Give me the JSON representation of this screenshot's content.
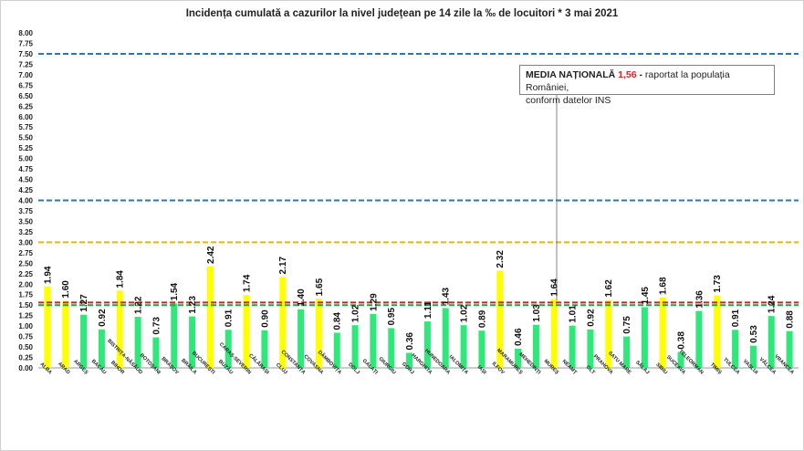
{
  "chart_data": {
    "type": "bar",
    "title": "Incidența cumulată a cazurilor la nivel județean pe 14 zile la ‰ de locuitori *   3 mai 2021",
    "ylim": [
      0,
      8
    ],
    "yticks": [
      "0.00",
      "0.25",
      "0.50",
      "0.75",
      "1.00",
      "1.25",
      "1.50",
      "1.75",
      "2.00",
      "2.25",
      "2.50",
      "2.75",
      "3.00",
      "3.25",
      "3.50",
      "3.75",
      "4.00",
      "4.25",
      "4.50",
      "4.75",
      "5.00",
      "5.25",
      "5.50",
      "5.75",
      "6.00",
      "6.25",
      "6.50",
      "6.75",
      "7.00",
      "7.25",
      "7.50",
      "7.75",
      "8.00"
    ],
    "categories": [
      "ALBA",
      "ARAD",
      "ARGEȘ",
      "BACĂU",
      "BIHOR",
      "BISTRIȚA-NĂSĂUD",
      "BOTOȘANI",
      "BRAȘOV",
      "BRĂILA",
      "BUCUREȘTI",
      "BUZĂU",
      "CARAȘ-SEVERIN",
      "CĂLĂRAȘI",
      "CLUJ",
      "CONSTANȚA",
      "COVASNA",
      "DÂMBOVIȚA",
      "DOLJ",
      "GALAȚI",
      "GIURGIU",
      "GORJ",
      "HARGHITA",
      "HUNEDOARA",
      "IALOMIȚA",
      "IAȘI",
      "ILFOV",
      "MARAMUREȘ",
      "MEHEDINȚI",
      "MUREȘ",
      "NEAMȚ",
      "OLT",
      "PRAHOVA",
      "SATU MARE",
      "SĂLAJ",
      "SIBIU",
      "SUCEAVA",
      "TELEORMAN",
      "TIMIȘ",
      "TULCEA",
      "VASLUI",
      "VÂLCEA",
      "VRANCEA"
    ],
    "values": [
      1.94,
      1.6,
      1.27,
      0.92,
      1.84,
      1.22,
      0.73,
      1.54,
      1.23,
      2.42,
      0.91,
      1.74,
      0.9,
      2.17,
      1.4,
      1.65,
      0.84,
      1.02,
      1.29,
      0.95,
      0.36,
      1.11,
      1.43,
      1.02,
      0.89,
      2.32,
      0.46,
      1.03,
      1.64,
      1.01,
      0.92,
      1.62,
      0.75,
      1.45,
      1.68,
      0.38,
      1.36,
      1.73,
      0.91,
      0.53,
      1.24,
      0.88
    ],
    "value_labels": [
      "1.94",
      "1.60",
      "1.27",
      "0.92",
      "1.84",
      "1.22",
      "0.73",
      "1.54",
      "1.23",
      "2.42",
      "0.91",
      "1.74",
      "0.90",
      "2.17",
      "1.40",
      "1.65",
      "0.84",
      "1.02",
      "1.29",
      "0.95",
      "0.36",
      "1.11",
      "1.43",
      "1.02",
      "0.89",
      "2.32",
      "0.46",
      "1.03",
      "1.64",
      "1.01",
      "0.92",
      "1.62",
      "0.75",
      "1.45",
      "1.68",
      "0.38",
      "1.36",
      "1.73",
      "0.91",
      "0.53",
      "1.24",
      "0.88"
    ],
    "colors": {
      "above_national": "#ffff00",
      "below_national": "#2ee87a"
    },
    "reference_lines": [
      {
        "value": 7.5,
        "color": "#2e75b6"
      },
      {
        "value": 4.0,
        "color": "#2e75b6"
      },
      {
        "value": 3.0,
        "color": "#e6b800"
      },
      {
        "value": 1.56,
        "color": "#d02020"
      },
      {
        "value": 1.5,
        "color": "#18a848"
      }
    ],
    "grid": false
  },
  "media_box": {
    "label": "MEDIA NAȚIONALĂ",
    "value": "1,56",
    "dash": "-",
    "text": "raportat la populația României,",
    "line2": "conform datelor INS"
  }
}
